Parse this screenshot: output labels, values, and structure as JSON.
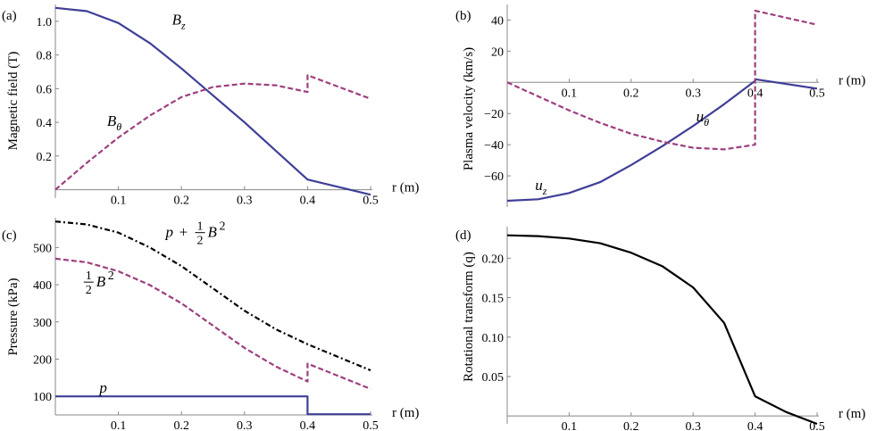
{
  "colors": {
    "blue": "#3f3f97",
    "purple": "#9e3f7e",
    "black": "#000000",
    "axis": "#888888"
  },
  "chart_data": [
    {
      "panel": "(a)",
      "type": "line",
      "ylabel": "Magnetic field (T)",
      "xlabel": "r (m)",
      "xlim": [
        0,
        0.5
      ],
      "ylim": [
        -0.05,
        1.1
      ],
      "xticks": [
        0.1,
        0.2,
        0.3,
        0.4,
        0.5
      ],
      "yticks": [
        0.2,
        0.4,
        0.6,
        0.8,
        1.0
      ],
      "ytick_labels": [
        "0.2",
        "0.4",
        "0.6",
        "0.8",
        "1.0"
      ],
      "series": [
        {
          "name": "B_z",
          "label": "B",
          "sub": "z",
          "style": "solid",
          "color": "blue",
          "x": [
            0,
            0.05,
            0.1,
            0.15,
            0.2,
            0.25,
            0.3,
            0.35,
            0.4,
            0.4,
            0.5
          ],
          "y": [
            1.08,
            1.06,
            0.99,
            0.87,
            0.72,
            0.56,
            0.4,
            0.23,
            0.06,
            0.06,
            -0.03
          ]
        },
        {
          "name": "B_θ",
          "label": "B",
          "sub": "θ",
          "style": "dashed",
          "color": "purple",
          "x": [
            0,
            0.05,
            0.1,
            0.15,
            0.2,
            0.25,
            0.3,
            0.35,
            0.4,
            0.4,
            0.5
          ],
          "y": [
            0.0,
            0.16,
            0.31,
            0.44,
            0.55,
            0.61,
            0.63,
            0.62,
            0.58,
            0.68,
            0.54
          ]
        }
      ],
      "annotations": [
        {
          "text": "B",
          "sub": "z",
          "x": 0.185,
          "y": 0.98
        },
        {
          "text": "B",
          "sub": "θ",
          "x": 0.082,
          "y": 0.38
        }
      ]
    },
    {
      "panel": "(b)",
      "type": "line",
      "ylabel": "Plasma velocity (km/s)",
      "xlabel": "r (m)",
      "xlim": [
        0,
        0.5
      ],
      "ylim": [
        -80,
        50
      ],
      "xticks": [
        0.1,
        0.2,
        0.3,
        0.4,
        0.5
      ],
      "yticks": [
        -60,
        -40,
        -20,
        20,
        40
      ],
      "ytick_labels": [
        "−60",
        "−40",
        "−20",
        "20",
        "40"
      ],
      "series": [
        {
          "name": "u_z",
          "label": "u",
          "sub": "z",
          "style": "solid",
          "color": "blue",
          "x": [
            0,
            0.05,
            0.1,
            0.15,
            0.2,
            0.25,
            0.3,
            0.35,
            0.4,
            0.4,
            0.5
          ],
          "y": [
            -76,
            -75,
            -71,
            -64,
            -53,
            -41,
            -28,
            -14,
            1,
            2,
            -4
          ]
        },
        {
          "name": "u_θ",
          "label": "u",
          "sub": "θ",
          "style": "dashed",
          "color": "purple",
          "x": [
            0,
            0.05,
            0.1,
            0.15,
            0.2,
            0.25,
            0.3,
            0.35,
            0.4,
            0.4,
            0.5
          ],
          "y": [
            0,
            -9,
            -18,
            -26,
            -33,
            -38,
            -42,
            -43,
            -40,
            46,
            37
          ]
        }
      ],
      "annotations": [
        {
          "text": "u",
          "sub": "θ",
          "x": 0.305,
          "y": -25
        },
        {
          "text": "u",
          "sub": "z",
          "x": 0.045,
          "y": -69
        }
      ]
    },
    {
      "panel": "(c)",
      "type": "line",
      "ylabel": "Pressure (kPa)",
      "xlabel": "r (m)",
      "xlim": [
        0,
        0.5
      ],
      "ylim": [
        50,
        580
      ],
      "xticks": [
        0.1,
        0.2,
        0.3,
        0.4,
        0.5
      ],
      "yticks": [
        100,
        200,
        300,
        400,
        500
      ],
      "ytick_labels": [
        "100",
        "200",
        "300",
        "400",
        "500"
      ],
      "series": [
        {
          "name": "p + 1/2 B^2",
          "style": "dashdot",
          "color": "black",
          "x": [
            0,
            0.05,
            0.1,
            0.15,
            0.2,
            0.25,
            0.3,
            0.35,
            0.4,
            0.45,
            0.5
          ],
          "y": [
            570,
            562,
            540,
            500,
            450,
            390,
            330,
            280,
            240,
            205,
            170
          ]
        },
        {
          "name": "1/2 B^2",
          "style": "dashed",
          "color": "purple",
          "x": [
            0,
            0.05,
            0.1,
            0.15,
            0.2,
            0.25,
            0.3,
            0.35,
            0.4,
            0.4,
            0.5
          ],
          "y": [
            470,
            460,
            436,
            399,
            350,
            290,
            230,
            180,
            140,
            188,
            120
          ]
        },
        {
          "name": "p",
          "label": "p",
          "style": "solid",
          "color": "blue",
          "x": [
            0,
            0.4,
            0.4,
            0.5
          ],
          "y": [
            100,
            100,
            52,
            52
          ]
        }
      ],
      "annotations": [
        {
          "text": "p",
          "x": 0.07,
          "y": 110
        }
      ]
    },
    {
      "panel": "(d)",
      "type": "line",
      "ylabel": "Rotational transform (q)",
      "xlabel": "r (m)",
      "xlim": [
        0,
        0.5
      ],
      "ylim": [
        -0.01,
        0.24
      ],
      "xticks": [
        0.1,
        0.2,
        0.3,
        0.4,
        0.5
      ],
      "yticks": [
        0.05,
        0.1,
        0.15,
        0.2
      ],
      "ytick_labels": [
        "0.05",
        "0.10",
        "0.15",
        "0.20"
      ],
      "series": [
        {
          "name": "q",
          "style": "solid",
          "color": "black",
          "x": [
            0,
            0.05,
            0.1,
            0.15,
            0.2,
            0.25,
            0.3,
            0.35,
            0.4,
            0.45,
            0.5
          ],
          "y": [
            0.229,
            0.228,
            0.225,
            0.219,
            0.207,
            0.19,
            0.163,
            0.118,
            0.025,
            0.005,
            -0.01
          ]
        }
      ]
    }
  ]
}
